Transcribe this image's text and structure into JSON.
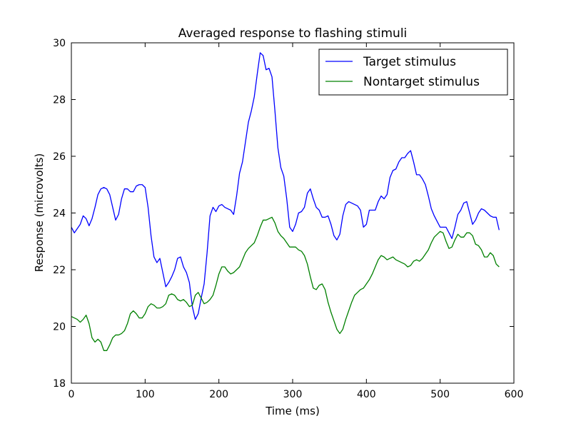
{
  "chart_data": {
    "type": "line",
    "title": "Averaged response to flashing stimuli",
    "xlabel": "Time (ms)",
    "ylabel": "Response (microvolts)",
    "xlim": [
      0,
      600
    ],
    "ylim": [
      18,
      30
    ],
    "xticks": [
      0,
      100,
      200,
      300,
      400,
      500,
      600
    ],
    "yticks": [
      18,
      20,
      22,
      24,
      26,
      28,
      30
    ],
    "grid": false,
    "legend_position": "top-right",
    "series": [
      {
        "name": "Target stimulus",
        "color": "#0000ff",
        "points": [
          [
            0,
            23.5
          ],
          [
            4,
            23.3
          ],
          [
            8,
            23.45
          ],
          [
            12,
            23.6
          ],
          [
            16,
            23.9
          ],
          [
            20,
            23.8
          ],
          [
            24,
            23.55
          ],
          [
            28,
            23.8
          ],
          [
            32,
            24.2
          ],
          [
            36,
            24.65
          ],
          [
            40,
            24.85
          ],
          [
            44,
            24.9
          ],
          [
            48,
            24.85
          ],
          [
            52,
            24.65
          ],
          [
            56,
            24.2
          ],
          [
            60,
            23.75
          ],
          [
            64,
            23.95
          ],
          [
            68,
            24.5
          ],
          [
            72,
            24.85
          ],
          [
            76,
            24.85
          ],
          [
            80,
            24.75
          ],
          [
            84,
            24.75
          ],
          [
            88,
            24.95
          ],
          [
            92,
            25.0
          ],
          [
            96,
            25.0
          ],
          [
            100,
            24.9
          ],
          [
            104,
            24.2
          ],
          [
            108,
            23.2
          ],
          [
            112,
            22.45
          ],
          [
            116,
            22.25
          ],
          [
            120,
            22.4
          ],
          [
            124,
            21.9
          ],
          [
            128,
            21.4
          ],
          [
            132,
            21.55
          ],
          [
            136,
            21.75
          ],
          [
            140,
            22.0
          ],
          [
            144,
            22.4
          ],
          [
            148,
            22.45
          ],
          [
            152,
            22.1
          ],
          [
            156,
            21.9
          ],
          [
            160,
            21.55
          ],
          [
            164,
            20.7
          ],
          [
            168,
            20.25
          ],
          [
            172,
            20.45
          ],
          [
            176,
            21.0
          ],
          [
            180,
            21.5
          ],
          [
            184,
            22.6
          ],
          [
            188,
            23.9
          ],
          [
            192,
            24.2
          ],
          [
            196,
            24.05
          ],
          [
            200,
            24.25
          ],
          [
            204,
            24.3
          ],
          [
            208,
            24.2
          ],
          [
            212,
            24.15
          ],
          [
            216,
            24.1
          ],
          [
            220,
            23.95
          ],
          [
            224,
            24.6
          ],
          [
            228,
            25.4
          ],
          [
            232,
            25.8
          ],
          [
            236,
            26.5
          ],
          [
            240,
            27.2
          ],
          [
            244,
            27.6
          ],
          [
            248,
            28.1
          ],
          [
            252,
            28.9
          ],
          [
            256,
            29.65
          ],
          [
            260,
            29.55
          ],
          [
            264,
            29.05
          ],
          [
            268,
            29.1
          ],
          [
            272,
            28.8
          ],
          [
            276,
            27.6
          ],
          [
            280,
            26.3
          ],
          [
            284,
            25.6
          ],
          [
            288,
            25.3
          ],
          [
            292,
            24.5
          ],
          [
            296,
            23.5
          ],
          [
            300,
            23.35
          ],
          [
            304,
            23.6
          ],
          [
            308,
            24.0
          ],
          [
            312,
            24.05
          ],
          [
            316,
            24.2
          ],
          [
            320,
            24.7
          ],
          [
            324,
            24.85
          ],
          [
            328,
            24.5
          ],
          [
            332,
            24.2
          ],
          [
            336,
            24.1
          ],
          [
            340,
            23.85
          ],
          [
            344,
            23.85
          ],
          [
            348,
            23.9
          ],
          [
            352,
            23.6
          ],
          [
            356,
            23.2
          ],
          [
            360,
            23.05
          ],
          [
            364,
            23.25
          ],
          [
            368,
            23.9
          ],
          [
            372,
            24.3
          ],
          [
            376,
            24.4
          ],
          [
            380,
            24.35
          ],
          [
            384,
            24.3
          ],
          [
            388,
            24.25
          ],
          [
            392,
            24.1
          ],
          [
            396,
            23.5
          ],
          [
            400,
            23.6
          ],
          [
            404,
            24.1
          ],
          [
            408,
            24.1
          ],
          [
            412,
            24.1
          ],
          [
            416,
            24.4
          ],
          [
            420,
            24.6
          ],
          [
            424,
            24.5
          ],
          [
            428,
            24.65
          ],
          [
            432,
            25.25
          ],
          [
            436,
            25.5
          ],
          [
            440,
            25.55
          ],
          [
            444,
            25.8
          ],
          [
            448,
            25.95
          ],
          [
            452,
            25.95
          ],
          [
            456,
            26.1
          ],
          [
            460,
            26.2
          ],
          [
            464,
            25.8
          ],
          [
            468,
            25.35
          ],
          [
            472,
            25.35
          ],
          [
            476,
            25.2
          ],
          [
            480,
            25.0
          ],
          [
            484,
            24.6
          ],
          [
            488,
            24.15
          ],
          [
            492,
            23.9
          ],
          [
            496,
            23.7
          ],
          [
            500,
            23.5
          ],
          [
            504,
            23.5
          ],
          [
            508,
            23.5
          ],
          [
            512,
            23.3
          ],
          [
            516,
            23.1
          ],
          [
            520,
            23.5
          ],
          [
            524,
            23.95
          ],
          [
            528,
            24.1
          ],
          [
            532,
            24.35
          ],
          [
            536,
            24.4
          ],
          [
            540,
            24.0
          ],
          [
            544,
            23.6
          ],
          [
            548,
            23.75
          ],
          [
            552,
            24.0
          ],
          [
            556,
            24.15
          ],
          [
            560,
            24.1
          ],
          [
            564,
            24.0
          ],
          [
            568,
            23.9
          ],
          [
            572,
            23.85
          ],
          [
            576,
            23.85
          ],
          [
            580,
            23.4
          ]
        ]
      },
      {
        "name": "Nontarget stimulus",
        "color": "#008000",
        "points": [
          [
            0,
            20.35
          ],
          [
            4,
            20.3
          ],
          [
            8,
            20.25
          ],
          [
            12,
            20.15
          ],
          [
            16,
            20.25
          ],
          [
            20,
            20.4
          ],
          [
            24,
            20.1
          ],
          [
            28,
            19.6
          ],
          [
            32,
            19.45
          ],
          [
            36,
            19.55
          ],
          [
            40,
            19.45
          ],
          [
            44,
            19.15
          ],
          [
            48,
            19.15
          ],
          [
            52,
            19.35
          ],
          [
            56,
            19.6
          ],
          [
            60,
            19.7
          ],
          [
            64,
            19.7
          ],
          [
            68,
            19.75
          ],
          [
            72,
            19.85
          ],
          [
            76,
            20.1
          ],
          [
            80,
            20.45
          ],
          [
            84,
            20.55
          ],
          [
            88,
            20.45
          ],
          [
            92,
            20.3
          ],
          [
            96,
            20.3
          ],
          [
            100,
            20.45
          ],
          [
            104,
            20.7
          ],
          [
            108,
            20.8
          ],
          [
            112,
            20.75
          ],
          [
            116,
            20.65
          ],
          [
            120,
            20.65
          ],
          [
            124,
            20.7
          ],
          [
            128,
            20.8
          ],
          [
            132,
            21.1
          ],
          [
            136,
            21.15
          ],
          [
            140,
            21.1
          ],
          [
            144,
            20.95
          ],
          [
            148,
            20.9
          ],
          [
            152,
            20.95
          ],
          [
            156,
            20.85
          ],
          [
            160,
            20.7
          ],
          [
            164,
            20.75
          ],
          [
            168,
            21.1
          ],
          [
            172,
            21.2
          ],
          [
            176,
            21.0
          ],
          [
            180,
            20.8
          ],
          [
            184,
            20.85
          ],
          [
            188,
            20.95
          ],
          [
            192,
            21.1
          ],
          [
            196,
            21.45
          ],
          [
            200,
            21.85
          ],
          [
            204,
            22.1
          ],
          [
            208,
            22.1
          ],
          [
            212,
            21.95
          ],
          [
            216,
            21.85
          ],
          [
            220,
            21.9
          ],
          [
            224,
            22.0
          ],
          [
            228,
            22.1
          ],
          [
            232,
            22.35
          ],
          [
            236,
            22.6
          ],
          [
            240,
            22.75
          ],
          [
            244,
            22.85
          ],
          [
            248,
            22.95
          ],
          [
            252,
            23.2
          ],
          [
            256,
            23.5
          ],
          [
            260,
            23.75
          ],
          [
            264,
            23.75
          ],
          [
            268,
            23.8
          ],
          [
            272,
            23.85
          ],
          [
            276,
            23.65
          ],
          [
            280,
            23.35
          ],
          [
            284,
            23.2
          ],
          [
            288,
            23.1
          ],
          [
            292,
            22.95
          ],
          [
            296,
            22.8
          ],
          [
            300,
            22.8
          ],
          [
            304,
            22.8
          ],
          [
            308,
            22.7
          ],
          [
            312,
            22.65
          ],
          [
            316,
            22.5
          ],
          [
            320,
            22.2
          ],
          [
            324,
            21.75
          ],
          [
            328,
            21.35
          ],
          [
            332,
            21.3
          ],
          [
            336,
            21.45
          ],
          [
            340,
            21.5
          ],
          [
            344,
            21.3
          ],
          [
            348,
            20.85
          ],
          [
            352,
            20.5
          ],
          [
            356,
            20.2
          ],
          [
            360,
            19.9
          ],
          [
            364,
            19.75
          ],
          [
            368,
            19.9
          ],
          [
            372,
            20.25
          ],
          [
            376,
            20.55
          ],
          [
            380,
            20.85
          ],
          [
            384,
            21.1
          ],
          [
            388,
            21.2
          ],
          [
            392,
            21.3
          ],
          [
            396,
            21.35
          ],
          [
            400,
            21.5
          ],
          [
            404,
            21.65
          ],
          [
            408,
            21.85
          ],
          [
            412,
            22.1
          ],
          [
            416,
            22.35
          ],
          [
            420,
            22.5
          ],
          [
            424,
            22.45
          ],
          [
            428,
            22.35
          ],
          [
            432,
            22.4
          ],
          [
            436,
            22.45
          ],
          [
            440,
            22.35
          ],
          [
            444,
            22.3
          ],
          [
            448,
            22.25
          ],
          [
            452,
            22.2
          ],
          [
            456,
            22.1
          ],
          [
            460,
            22.15
          ],
          [
            464,
            22.3
          ],
          [
            468,
            22.35
          ],
          [
            472,
            22.3
          ],
          [
            476,
            22.4
          ],
          [
            480,
            22.55
          ],
          [
            484,
            22.7
          ],
          [
            488,
            22.95
          ],
          [
            492,
            23.15
          ],
          [
            496,
            23.25
          ],
          [
            500,
            23.35
          ],
          [
            504,
            23.3
          ],
          [
            508,
            23.0
          ],
          [
            512,
            22.75
          ],
          [
            516,
            22.8
          ],
          [
            520,
            23.05
          ],
          [
            524,
            23.25
          ],
          [
            528,
            23.15
          ],
          [
            532,
            23.15
          ],
          [
            536,
            23.3
          ],
          [
            540,
            23.3
          ],
          [
            544,
            23.2
          ],
          [
            548,
            22.9
          ],
          [
            552,
            22.85
          ],
          [
            556,
            22.7
          ],
          [
            560,
            22.45
          ],
          [
            564,
            22.45
          ],
          [
            568,
            22.6
          ],
          [
            572,
            22.5
          ],
          [
            576,
            22.2
          ],
          [
            580,
            22.1
          ]
        ]
      }
    ]
  }
}
